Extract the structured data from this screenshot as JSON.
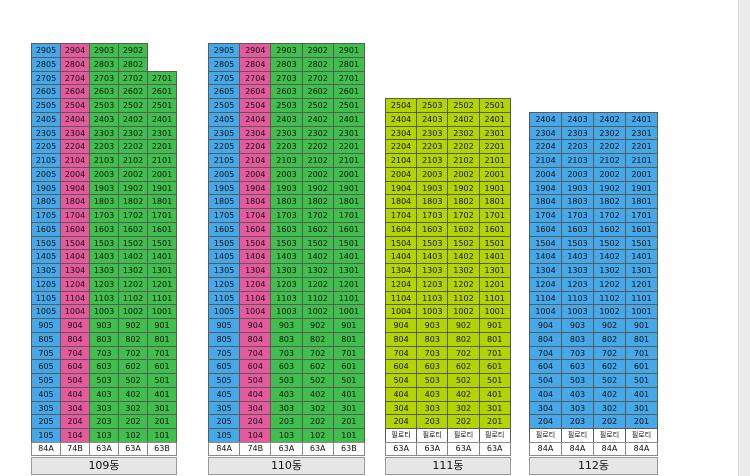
{
  "colors": {
    "pink": "#e55a9c",
    "green": "#3fbf4c",
    "blue": "#45a8e8",
    "lime": "#b4d400"
  },
  "buildings": [
    {
      "name": "109동",
      "columns": [
        {
          "line": "05",
          "type": "84A",
          "top_floor": 29,
          "colors": {
            "default": "blue"
          }
        },
        {
          "line": "04",
          "type": "74B",
          "top_floor": 29,
          "colors": {
            "default": "pink"
          }
        },
        {
          "line": "03",
          "type": "63A",
          "top_floor": 29,
          "colors": {
            "default": "green"
          }
        },
        {
          "line": "02",
          "type": "63A",
          "top_floor": 29,
          "colors": {
            "default": "green"
          }
        },
        {
          "line": "01",
          "type": "63B",
          "top_floor": 27,
          "colors": {
            "default": "green"
          }
        }
      ]
    },
    {
      "name": "110동",
      "columns": [
        {
          "line": "05",
          "type": "84A",
          "top_floor": 29,
          "colors": {
            "default": "blue"
          }
        },
        {
          "line": "04",
          "type": "74B",
          "top_floor": 29,
          "colors": {
            "default": "pink"
          }
        },
        {
          "line": "03",
          "type": "63A",
          "top_floor": 29,
          "colors": {
            "default": "green"
          }
        },
        {
          "line": "02",
          "type": "63A",
          "top_floor": 29,
          "colors": {
            "default": "green"
          }
        },
        {
          "line": "01",
          "type": "63B",
          "top_floor": 29,
          "colors": {
            "default": "green"
          }
        }
      ]
    },
    {
      "name": "111동",
      "pilotis_label": "필로티",
      "columns": [
        {
          "line": "04",
          "type": "63A",
          "top_floor": 25,
          "colors": {
            "default": "lime"
          }
        },
        {
          "line": "03",
          "type": "63A",
          "top_floor": 25,
          "colors": {
            "default": "lime"
          }
        },
        {
          "line": "02",
          "type": "63A",
          "top_floor": 25,
          "colors": {
            "default": "lime"
          }
        },
        {
          "line": "01",
          "type": "63A",
          "top_floor": 25,
          "colors": {
            "default": "lime"
          }
        }
      ]
    },
    {
      "name": "112동",
      "pilotis_label": "필로티",
      "columns": [
        {
          "line": "04",
          "type": "84A",
          "top_floor": 24,
          "colors": {
            "default": "blue"
          }
        },
        {
          "line": "03",
          "type": "84A",
          "top_floor": 24,
          "colors": {
            "default": "blue"
          }
        },
        {
          "line": "02",
          "type": "84A",
          "top_floor": 24,
          "colors": {
            "default": "blue"
          }
        },
        {
          "line": "01",
          "type": "84A",
          "top_floor": 24,
          "colors": {
            "default": "blue"
          }
        }
      ]
    }
  ]
}
